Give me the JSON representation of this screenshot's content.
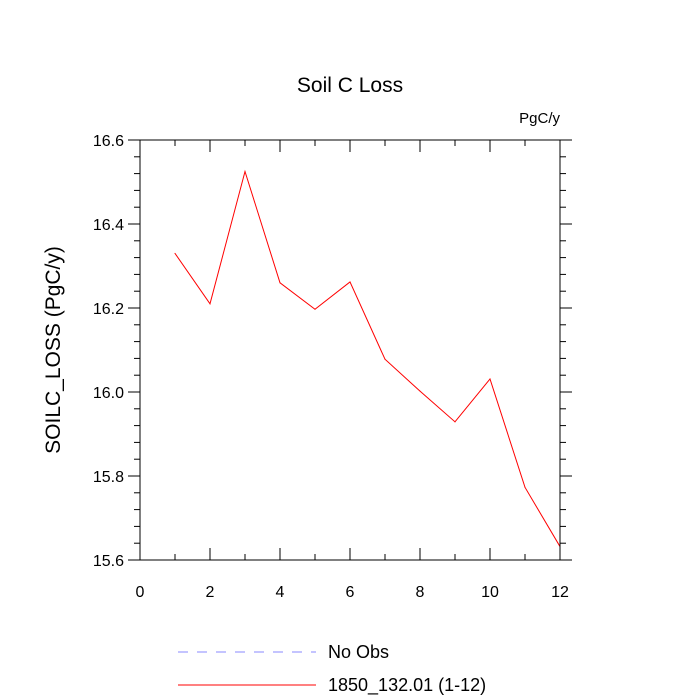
{
  "chart_data": {
    "type": "line",
    "title": "Soil C Loss",
    "units_label": "PgC/y",
    "ylabel": "SOILC_LOSS  (PgC/y)",
    "xlabel": "",
    "xlim": [
      0,
      12
    ],
    "ylim": [
      15.6,
      16.6
    ],
    "x_ticks": [
      0,
      2,
      4,
      6,
      8,
      10,
      12
    ],
    "y_ticks": [
      15.6,
      15.8,
      16.0,
      16.2,
      16.4,
      16.6
    ],
    "x_tick_labels": [
      "0",
      "2",
      "4",
      "6",
      "8",
      "10",
      "12"
    ],
    "y_tick_labels": [
      "15.6",
      "15.8",
      "16.0",
      "16.2",
      "16.4",
      "16.6"
    ],
    "grid": false,
    "legend_position": "bottom",
    "series": [
      {
        "name": "1850_132.01 (1-12)",
        "color": "#ff0000",
        "style": "solid",
        "x": [
          1,
          2,
          3,
          4,
          5,
          6,
          7,
          8,
          9,
          10,
          11,
          12
        ],
        "values": [
          16.33,
          16.21,
          16.525,
          16.26,
          16.197,
          16.262,
          16.078,
          16.002,
          15.929,
          16.031,
          15.773,
          15.632
        ]
      }
    ],
    "legend": [
      {
        "label": "No Obs",
        "color": "#8888ff",
        "style": "dashed"
      },
      {
        "label": "1850_132.01 (1-12)",
        "color": "#ff0000",
        "style": "solid"
      }
    ]
  }
}
